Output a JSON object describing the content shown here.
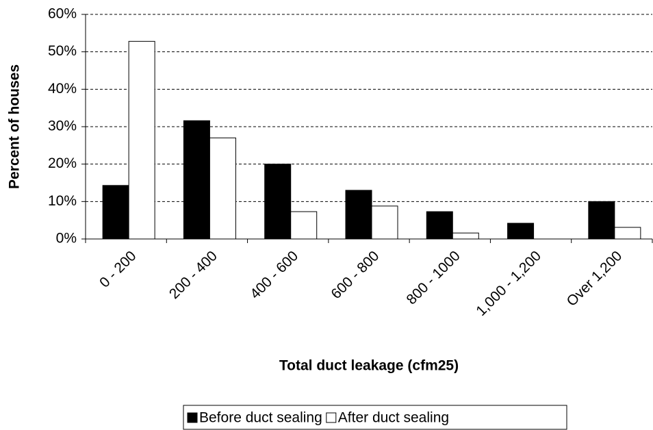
{
  "chart_data": {
    "type": "bar",
    "xlabel": "Total duct leakage (cfm25)",
    "ylabel": "Percent of houses",
    "categories": [
      "0 - 200",
      "200 - 400",
      "400 - 600",
      "600 - 800",
      "800 - 1000",
      "1,000 - 1,200",
      "Over 1,200"
    ],
    "series": [
      {
        "name": "Before duct sealing",
        "color": "#000000",
        "values": [
          14.3,
          31.6,
          20,
          13,
          7.3,
          4.2,
          10
        ]
      },
      {
        "name": "After duct sealing",
        "color": "#ffffff",
        "values": [
          52.8,
          27,
          7.3,
          8.8,
          1.6,
          0,
          3.1
        ]
      }
    ],
    "ylim": [
      0,
      60
    ],
    "yticks": [
      {
        "value": 0,
        "label": "0%"
      },
      {
        "value": 10,
        "label": "10%"
      },
      {
        "value": 20,
        "label": "20%"
      },
      {
        "value": 30,
        "label": "30%"
      },
      {
        "value": 40,
        "label": "40%"
      },
      {
        "value": 50,
        "label": "50%"
      },
      {
        "value": 60,
        "label": "60%"
      }
    ],
    "grid": true,
    "legend": "bottom"
  }
}
